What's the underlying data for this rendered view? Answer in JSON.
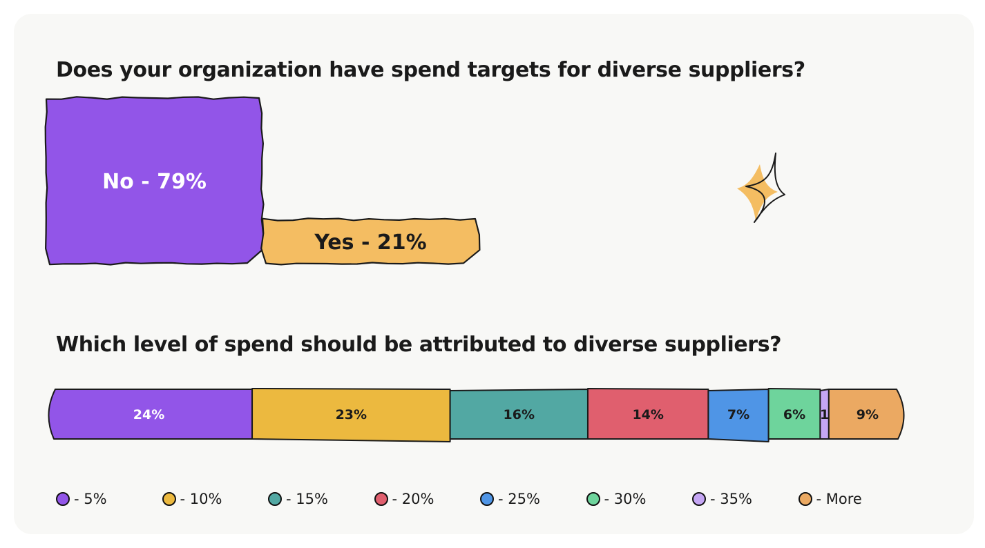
{
  "card": {
    "question1": "Does your organization have spend targets for diverse suppliers?",
    "question2": "Which level of spend should be attributed to diverse suppliers?"
  },
  "chart_data": [
    {
      "type": "bar",
      "title": "Does your organization have spend targets for diverse suppliers?",
      "categories": [
        "No",
        "Yes"
      ],
      "values": [
        79,
        21
      ],
      "data_labels": [
        "No - 79%",
        "Yes - 21%"
      ],
      "colors": [
        "#9255e8",
        "#f4bd62"
      ],
      "grid": false
    },
    {
      "type": "bar",
      "stacked": true,
      "orientation": "horizontal",
      "title": "Which level of spend should be attributed to diverse suppliers?",
      "series": [
        {
          "name": "- 5%",
          "value": 24,
          "label": "24%",
          "color": "#9255e8"
        },
        {
          "name": "- 10%",
          "value": 23,
          "label": "23%",
          "color": "#ecb93f"
        },
        {
          "name": "- 15%",
          "value": 16,
          "label": "16%",
          "color": "#52a8a3"
        },
        {
          "name": "- 20%",
          "value": 14,
          "label": "14%",
          "color": "#e05f6e"
        },
        {
          "name": "- 25%",
          "value": 7,
          "label": "7%",
          "color": "#4f95e6"
        },
        {
          "name": "- 30%",
          "value": 6,
          "label": "6%",
          "color": "#6ed49c"
        },
        {
          "name": "- 35%",
          "value": 1,
          "label": "1",
          "color": "#c5a6f4"
        },
        {
          "name": "- More",
          "value": 9,
          "label": "9%",
          "color": "#eba962"
        }
      ],
      "legend_position": "bottom",
      "grid": false
    }
  ],
  "decoration": {
    "icon": "sparkle-icon",
    "fill": "#f4bd62"
  }
}
